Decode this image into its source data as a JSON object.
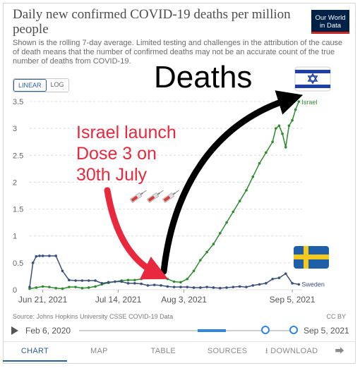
{
  "header": {
    "title": "Daily new confirmed COVID-19 deaths per million people",
    "subtitle": "Shown is the rolling 7-day average. Limited testing and challenges in the attribution of the cause of death means that the number of confirmed deaths may not be an accurate count of the true number of deaths from COVID-19.",
    "logo_line1": "Our World",
    "logo_line2": "in Data"
  },
  "scale_toggle": {
    "linear": "LINEAR",
    "log": "LOG",
    "selected": "LINEAR"
  },
  "annotations": {
    "deaths": "Deaths",
    "launch_line1": "Israel launch",
    "launch_line2": "Dose 3 on",
    "launch_line3": "30th July"
  },
  "colors": {
    "israel": "#2e8b2e",
    "sweden": "#3a4f7a",
    "grid": "#dcdcdc",
    "red_arrow": "#e8283c",
    "black_arrow": "#000000"
  },
  "footer": {
    "source": "Source: Johns Hopkins University CSSE COVID-19 Data",
    "license": "CC BY"
  },
  "timeline": {
    "start": "Feb 6, 2020",
    "end": "Sep 5, 2021"
  },
  "tabs": [
    "CHART",
    "MAP",
    "TABLE",
    "SOURCES",
    "DOWNLOAD"
  ],
  "chart_data": {
    "type": "line",
    "ylim": [
      0,
      3.5
    ],
    "y_ticks": [
      "0",
      "0.5",
      "1",
      "1.5",
      "2",
      "2.5",
      "3",
      "3.5"
    ],
    "x_tick_labels": [
      "Jun 21, 2021",
      "Jul 14, 2021",
      "Aug 3, 2021",
      "Sep 5, 2021"
    ],
    "x_tick_dates": [
      "2021-06-21",
      "2021-07-14",
      "2021-08-03",
      "2021-09-05"
    ],
    "xlim": [
      "2021-06-17",
      "2021-09-08"
    ],
    "series": [
      {
        "name": "Israel",
        "x": [
          "2021-06-17",
          "2021-06-19",
          "2021-06-21",
          "2021-06-23",
          "2021-06-25",
          "2021-06-27",
          "2021-06-29",
          "2021-07-01",
          "2021-07-03",
          "2021-07-05",
          "2021-07-07",
          "2021-07-09",
          "2021-07-11",
          "2021-07-13",
          "2021-07-15",
          "2021-07-17",
          "2021-07-19",
          "2021-07-21",
          "2021-07-23",
          "2021-07-25",
          "2021-07-27",
          "2021-07-29",
          "2021-07-31",
          "2021-08-02",
          "2021-08-04",
          "2021-08-06",
          "2021-08-08",
          "2021-08-10",
          "2021-08-12",
          "2021-08-14",
          "2021-08-16",
          "2021-08-18",
          "2021-08-20",
          "2021-08-22",
          "2021-08-24",
          "2021-08-26",
          "2021-08-28",
          "2021-08-30",
          "2021-08-31",
          "2021-09-01",
          "2021-09-02",
          "2021-09-03",
          "2021-09-04",
          "2021-09-05",
          "2021-09-06",
          "2021-09-07"
        ],
        "y": [
          0.02,
          0.04,
          0.06,
          0.05,
          0.03,
          0.02,
          0.05,
          0.05,
          0.03,
          0.04,
          0.06,
          0.1,
          0.13,
          0.15,
          0.17,
          0.18,
          0.18,
          0.2,
          0.22,
          0.22,
          0.24,
          0.2,
          0.15,
          0.14,
          0.2,
          0.35,
          0.55,
          0.7,
          0.85,
          1.05,
          1.25,
          1.45,
          1.65,
          1.85,
          2.1,
          2.35,
          2.55,
          2.75,
          3.0,
          3.05,
          2.9,
          2.65,
          3.05,
          3.15,
          3.35,
          3.5
        ]
      },
      {
        "name": "Sweden",
        "x": [
          "2021-06-17",
          "2021-06-18",
          "2021-06-19",
          "2021-06-20",
          "2021-06-21",
          "2021-06-23",
          "2021-06-25",
          "2021-06-27",
          "2021-06-29",
          "2021-07-01",
          "2021-07-03",
          "2021-07-05",
          "2021-07-07",
          "2021-07-09",
          "2021-07-11",
          "2021-07-13",
          "2021-07-15",
          "2021-07-17",
          "2021-07-19",
          "2021-07-21",
          "2021-07-23",
          "2021-07-25",
          "2021-07-27",
          "2021-07-29",
          "2021-07-31",
          "2021-08-02",
          "2021-08-04",
          "2021-08-06",
          "2021-08-08",
          "2021-08-10",
          "2021-08-12",
          "2021-08-14",
          "2021-08-16",
          "2021-08-18",
          "2021-08-20",
          "2021-08-22",
          "2021-08-24",
          "2021-08-26",
          "2021-08-28",
          "2021-08-30",
          "2021-09-01",
          "2021-09-03",
          "2021-09-05",
          "2021-09-07"
        ],
        "y": [
          0.05,
          0.5,
          0.62,
          0.63,
          0.63,
          0.63,
          0.63,
          0.35,
          0.18,
          0.17,
          0.17,
          0.17,
          0.17,
          0.12,
          0.14,
          0.15,
          0.15,
          0.12,
          0.12,
          0.11,
          0.08,
          0.09,
          0.08,
          0.06,
          0.05,
          0.05,
          0.05,
          0.04,
          0.04,
          0.05,
          0.04,
          0.03,
          0.04,
          0.05,
          0.06,
          0.05,
          0.08,
          0.1,
          0.12,
          0.2,
          0.22,
          0.3,
          0.12,
          0.1
        ]
      }
    ]
  }
}
